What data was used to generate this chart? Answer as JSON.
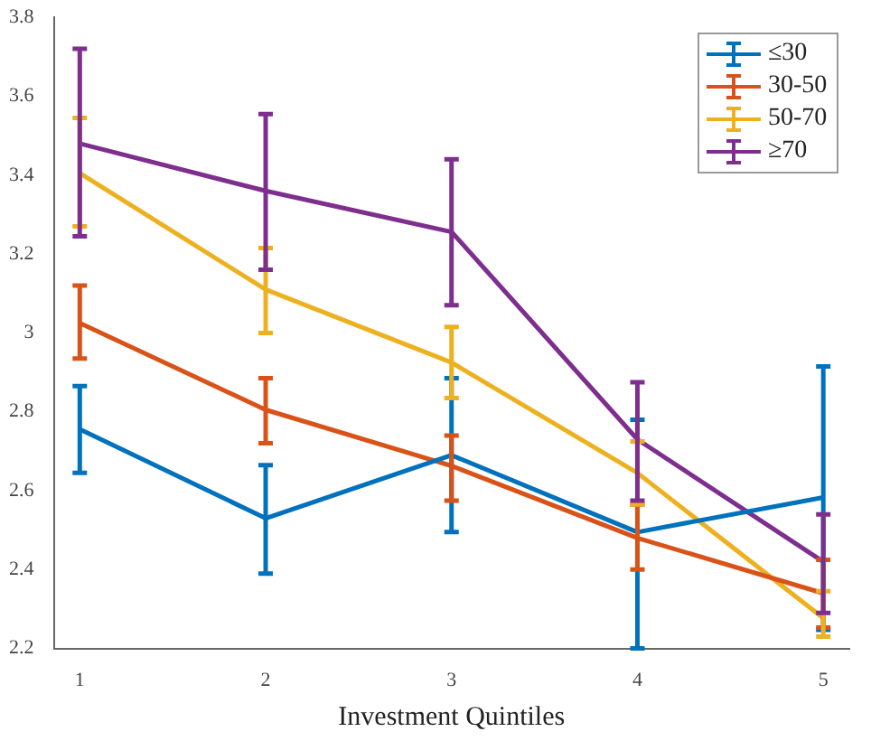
{
  "chart_data": {
    "type": "line",
    "xlabel": "Investment Quintiles",
    "x": [
      1,
      2,
      3,
      4,
      5
    ],
    "xlim": [
      0.86,
      5.14
    ],
    "xticks": [
      1,
      2,
      3,
      4,
      5
    ],
    "ylim": [
      2.2,
      3.8
    ],
    "yticks": [
      2.2,
      2.4,
      2.6,
      2.8,
      3,
      3.2,
      3.4,
      3.6,
      3.8
    ],
    "grid": false,
    "legend": "top right",
    "marker": "none",
    "line_style": "solid",
    "series": [
      {
        "name": "≤30",
        "color": "#0072bd",
        "values": [
          2.756,
          2.53,
          2.69,
          2.495,
          2.583
        ],
        "errors": [
          [
            2.645,
            2.865
          ],
          [
            2.39,
            2.665
          ],
          [
            2.495,
            2.885
          ],
          [
            2.2,
            2.78
          ],
          [
            2.247,
            2.915
          ]
        ]
      },
      {
        "name": "30-50",
        "color": "#d95319",
        "values": [
          3.025,
          2.805,
          2.663,
          2.48,
          2.34
        ],
        "errors": [
          [
            2.935,
            3.12
          ],
          [
            2.72,
            2.885
          ],
          [
            2.575,
            2.74
          ],
          [
            2.4,
            2.565
          ],
          [
            2.253,
            2.425
          ]
        ]
      },
      {
        "name": "50-70",
        "color": "#edb120",
        "values": [
          3.405,
          3.11,
          2.925,
          2.645,
          2.277
        ],
        "errors": [
          [
            3.27,
            3.545
          ],
          [
            3.0,
            3.215
          ],
          [
            2.835,
            3.015
          ],
          [
            2.565,
            2.725
          ],
          [
            2.23,
            2.345
          ]
        ]
      },
      {
        "name": "≥70",
        "color": "#7e2f8e",
        "values": [
          3.48,
          3.36,
          3.256,
          2.73,
          2.42
        ],
        "errors": [
          [
            3.245,
            3.72
          ],
          [
            3.16,
            3.555
          ],
          [
            3.07,
            3.44
          ],
          [
            2.575,
            2.875
          ],
          [
            2.29,
            2.54
          ]
        ]
      }
    ]
  }
}
